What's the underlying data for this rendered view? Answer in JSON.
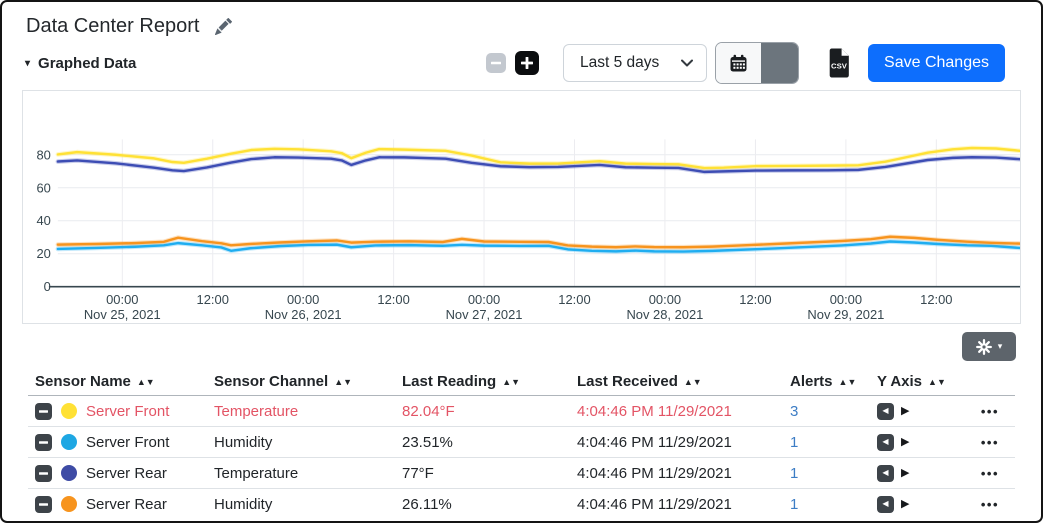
{
  "header": {
    "title": "Data Center Report"
  },
  "section": {
    "label": "Graphed Data"
  },
  "toolbar": {
    "range_select_value": "Last 5 days",
    "save_label": "Save Changes"
  },
  "icons": {
    "sort": "▲▼",
    "caret_down": "▾",
    "triangle_left": "◀",
    "triangle_right": "▶",
    "ellipsis": "•••"
  },
  "chart_data": {
    "type": "line",
    "ylim": [
      0,
      95
    ],
    "yticks": [
      0,
      20,
      40,
      60,
      80
    ],
    "grid": true,
    "legend": "none",
    "xticks": [
      {
        "frac": 0.067,
        "time": "00:00",
        "date": "Nov 25, 2021"
      },
      {
        "frac": 0.161,
        "time": "12:00",
        "date": ""
      },
      {
        "frac": 0.255,
        "time": "00:00",
        "date": "Nov 26, 2021"
      },
      {
        "frac": 0.349,
        "time": "12:00",
        "date": ""
      },
      {
        "frac": 0.443,
        "time": "00:00",
        "date": "Nov 27, 2021"
      },
      {
        "frac": 0.537,
        "time": "12:00",
        "date": ""
      },
      {
        "frac": 0.631,
        "time": "00:00",
        "date": "Nov 28, 2021"
      },
      {
        "frac": 0.725,
        "time": "12:00",
        "date": ""
      },
      {
        "frac": 0.819,
        "time": "00:00",
        "date": "Nov 29, 2021"
      },
      {
        "frac": 0.913,
        "time": "12:00",
        "date": ""
      }
    ],
    "series": [
      {
        "name": "Server Front Temperature",
        "color": "#ffe135",
        "unit": "°F",
        "points": [
          [
            0.0,
            80.2
          ],
          [
            0.02,
            81.6
          ],
          [
            0.06,
            80.0
          ],
          [
            0.1,
            77.8
          ],
          [
            0.119,
            75.6
          ],
          [
            0.131,
            75.1
          ],
          [
            0.155,
            77.6
          ],
          [
            0.18,
            80.6
          ],
          [
            0.201,
            82.9
          ],
          [
            0.225,
            83.6
          ],
          [
            0.25,
            83.3
          ],
          [
            0.284,
            82.1
          ],
          [
            0.295,
            81.0
          ],
          [
            0.305,
            77.9
          ],
          [
            0.32,
            81.2
          ],
          [
            0.334,
            83.4
          ],
          [
            0.36,
            83.1
          ],
          [
            0.403,
            82.4
          ],
          [
            0.43,
            79.5
          ],
          [
            0.46,
            75.4
          ],
          [
            0.49,
            74.6
          ],
          [
            0.52,
            74.7
          ],
          [
            0.563,
            76.1
          ],
          [
            0.59,
            74.6
          ],
          [
            0.62,
            74.4
          ],
          [
            0.645,
            74.2
          ],
          [
            0.672,
            71.9
          ],
          [
            0.692,
            72.2
          ],
          [
            0.725,
            73.1
          ],
          [
            0.76,
            73.2
          ],
          [
            0.8,
            73.4
          ],
          [
            0.832,
            73.6
          ],
          [
            0.86,
            75.8
          ],
          [
            0.904,
            81.2
          ],
          [
            0.93,
            83.3
          ],
          [
            0.95,
            84.1
          ],
          [
            0.975,
            83.8
          ],
          [
            1.0,
            82.4
          ]
        ]
      },
      {
        "name": "Server Rear Temperature",
        "color": "#3d4db4",
        "unit": "°F",
        "points": [
          [
            0.0,
            75.9
          ],
          [
            0.02,
            76.6
          ],
          [
            0.06,
            74.8
          ],
          [
            0.1,
            72.2
          ],
          [
            0.119,
            70.6
          ],
          [
            0.131,
            70.1
          ],
          [
            0.155,
            72.3
          ],
          [
            0.18,
            75.2
          ],
          [
            0.201,
            77.4
          ],
          [
            0.225,
            78.5
          ],
          [
            0.25,
            78.3
          ],
          [
            0.284,
            77.6
          ],
          [
            0.295,
            76.6
          ],
          [
            0.305,
            73.8
          ],
          [
            0.32,
            76.6
          ],
          [
            0.334,
            78.5
          ],
          [
            0.36,
            78.4
          ],
          [
            0.403,
            77.6
          ],
          [
            0.43,
            75.1
          ],
          [
            0.46,
            73.0
          ],
          [
            0.49,
            72.5
          ],
          [
            0.52,
            72.6
          ],
          [
            0.563,
            73.8
          ],
          [
            0.59,
            72.4
          ],
          [
            0.62,
            72.2
          ],
          [
            0.645,
            72.0
          ],
          [
            0.672,
            69.6
          ],
          [
            0.692,
            69.9
          ],
          [
            0.725,
            70.4
          ],
          [
            0.76,
            70.5
          ],
          [
            0.8,
            70.6
          ],
          [
            0.832,
            70.8
          ],
          [
            0.86,
            72.6
          ],
          [
            0.904,
            76.8
          ],
          [
            0.93,
            78.1
          ],
          [
            0.95,
            78.5
          ],
          [
            0.975,
            78.3
          ],
          [
            1.0,
            77.3
          ]
        ]
      },
      {
        "name": "Server Front Humidity",
        "color": "#1fadf0",
        "unit": "%",
        "points": [
          [
            0.0,
            22.9
          ],
          [
            0.04,
            23.5
          ],
          [
            0.08,
            24.2
          ],
          [
            0.11,
            25.1
          ],
          [
            0.125,
            26.4
          ],
          [
            0.15,
            25.1
          ],
          [
            0.17,
            23.8
          ],
          [
            0.18,
            21.8
          ],
          [
            0.2,
            23.3
          ],
          [
            0.23,
            24.6
          ],
          [
            0.26,
            25.3
          ],
          [
            0.29,
            25.5
          ],
          [
            0.305,
            23.9
          ],
          [
            0.33,
            25.0
          ],
          [
            0.365,
            25.2
          ],
          [
            0.4,
            24.8
          ],
          [
            0.42,
            25.4
          ],
          [
            0.443,
            24.9
          ],
          [
            0.48,
            24.7
          ],
          [
            0.51,
            24.8
          ],
          [
            0.53,
            22.6
          ],
          [
            0.555,
            21.8
          ],
          [
            0.58,
            21.4
          ],
          [
            0.6,
            21.9
          ],
          [
            0.62,
            21.4
          ],
          [
            0.65,
            21.3
          ],
          [
            0.68,
            21.7
          ],
          [
            0.71,
            22.4
          ],
          [
            0.745,
            23.2
          ],
          [
            0.78,
            24.1
          ],
          [
            0.815,
            25.0
          ],
          [
            0.845,
            26.2
          ],
          [
            0.865,
            27.4
          ],
          [
            0.89,
            26.8
          ],
          [
            0.915,
            25.9
          ],
          [
            0.945,
            25.1
          ],
          [
            0.97,
            24.8
          ],
          [
            1.0,
            23.5
          ]
        ]
      },
      {
        "name": "Server Rear Humidity",
        "color": "#f7941e",
        "unit": "%",
        "points": [
          [
            0.0,
            25.5
          ],
          [
            0.04,
            25.9
          ],
          [
            0.08,
            26.4
          ],
          [
            0.11,
            27.2
          ],
          [
            0.125,
            29.7
          ],
          [
            0.15,
            27.6
          ],
          [
            0.17,
            26.3
          ],
          [
            0.18,
            25.1
          ],
          [
            0.2,
            25.9
          ],
          [
            0.23,
            26.8
          ],
          [
            0.26,
            27.5
          ],
          [
            0.29,
            28.0
          ],
          [
            0.305,
            26.7
          ],
          [
            0.33,
            27.3
          ],
          [
            0.365,
            27.5
          ],
          [
            0.4,
            27.1
          ],
          [
            0.42,
            29.0
          ],
          [
            0.443,
            27.4
          ],
          [
            0.48,
            27.2
          ],
          [
            0.51,
            27.1
          ],
          [
            0.53,
            25.0
          ],
          [
            0.555,
            24.3
          ],
          [
            0.58,
            23.9
          ],
          [
            0.6,
            24.4
          ],
          [
            0.62,
            24.0
          ],
          [
            0.65,
            23.9
          ],
          [
            0.68,
            24.3
          ],
          [
            0.71,
            25.0
          ],
          [
            0.745,
            25.9
          ],
          [
            0.78,
            26.8
          ],
          [
            0.815,
            27.7
          ],
          [
            0.845,
            28.8
          ],
          [
            0.865,
            30.3
          ],
          [
            0.89,
            29.6
          ],
          [
            0.915,
            28.4
          ],
          [
            0.945,
            27.3
          ],
          [
            0.97,
            26.6
          ],
          [
            1.0,
            26.1
          ]
        ]
      }
    ]
  },
  "table": {
    "columns": [
      "Sensor Name",
      "Sensor Channel",
      "Last Reading",
      "Last Received",
      "Alerts",
      "Y Axis"
    ],
    "rows": [
      {
        "color": "#ffe135",
        "name": "Server Front",
        "channel": "Temperature",
        "reading": "82.04°F",
        "received": "4:04:46 PM 11/29/2021",
        "alerts": "3",
        "alert_state": true
      },
      {
        "color": "#1ea7e3",
        "name": "Server Front",
        "channel": "Humidity",
        "reading": "23.51%",
        "received": "4:04:46 PM 11/29/2021",
        "alerts": "1",
        "alert_state": false
      },
      {
        "color": "#3e4ba5",
        "name": "Server Rear",
        "channel": "Temperature",
        "reading": "77°F",
        "received": "4:04:46 PM 11/29/2021",
        "alerts": "1",
        "alert_state": false
      },
      {
        "color": "#f7941e",
        "name": "Server Rear",
        "channel": "Humidity",
        "reading": "26.11%",
        "received": "4:04:46 PM 11/29/2021",
        "alerts": "1",
        "alert_state": false
      }
    ]
  },
  "colors": {
    "accent": "#0d6efd",
    "danger_text": "#e35465",
    "link": "#3d7dc5",
    "dark_button": "#3d4349",
    "gear_button": "#5d646b"
  }
}
